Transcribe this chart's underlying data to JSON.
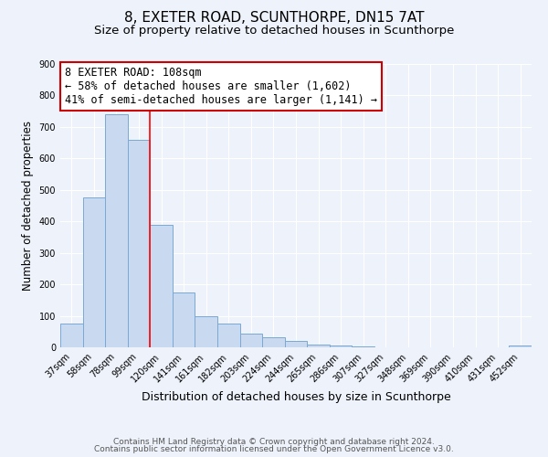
{
  "title": "8, EXETER ROAD, SCUNTHORPE, DN15 7AT",
  "subtitle": "Size of property relative to detached houses in Scunthorpe",
  "xlabel": "Distribution of detached houses by size in Scunthorpe",
  "ylabel": "Number of detached properties",
  "bar_labels": [
    "37sqm",
    "58sqm",
    "78sqm",
    "99sqm",
    "120sqm",
    "141sqm",
    "161sqm",
    "182sqm",
    "203sqm",
    "224sqm",
    "244sqm",
    "265sqm",
    "286sqm",
    "307sqm",
    "327sqm",
    "348sqm",
    "369sqm",
    "390sqm",
    "410sqm",
    "431sqm",
    "452sqm"
  ],
  "bar_values": [
    75,
    475,
    740,
    660,
    390,
    175,
    100,
    75,
    45,
    33,
    20,
    10,
    5,
    3,
    0,
    0,
    0,
    0,
    0,
    0,
    5
  ],
  "bar_color": "#c9d9f0",
  "bar_edge_color": "#7aa8d4",
  "ylim": [
    0,
    900
  ],
  "yticks": [
    0,
    100,
    200,
    300,
    400,
    500,
    600,
    700,
    800,
    900
  ],
  "red_line_x": 3.5,
  "annotation_title": "8 EXETER ROAD: 108sqm",
  "annotation_line1": "← 58% of detached houses are smaller (1,602)",
  "annotation_line2": "41% of semi-detached houses are larger (1,141) →",
  "annotation_box_color": "#ffffff",
  "annotation_box_edge_color": "#cc0000",
  "footnote1": "Contains HM Land Registry data © Crown copyright and database right 2024.",
  "footnote2": "Contains public sector information licensed under the Open Government Licence v3.0.",
  "title_fontsize": 11,
  "subtitle_fontsize": 9.5,
  "xlabel_fontsize": 9,
  "ylabel_fontsize": 8.5,
  "tick_fontsize": 7,
  "annotation_fontsize": 8.5,
  "footnote_fontsize": 6.5,
  "background_color": "#eef2fb"
}
